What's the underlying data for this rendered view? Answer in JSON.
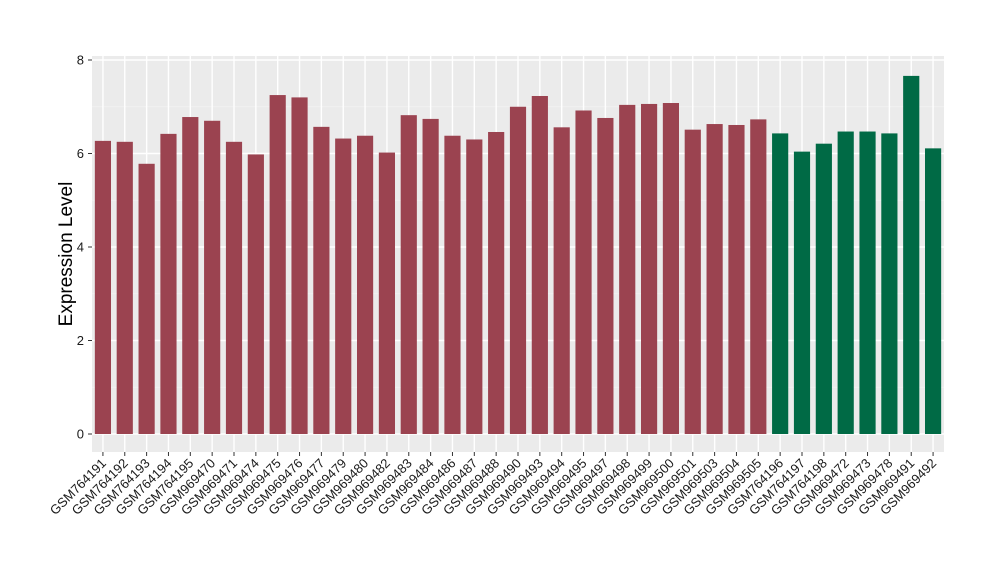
{
  "chart_data": {
    "type": "bar",
    "title": "",
    "xlabel": "",
    "ylabel": "Expression Level",
    "ylim": [
      0,
      8.0
    ],
    "yticks": [
      0,
      2,
      4,
      6,
      8
    ],
    "grid": true,
    "background": "#ebebeb",
    "categories": [
      "GSM764191",
      "GSM764192",
      "GSM764193",
      "GSM764194",
      "GSM764195",
      "GSM969470",
      "GSM969471",
      "GSM969474",
      "GSM969475",
      "GSM969476",
      "GSM969477",
      "GSM969479",
      "GSM969480",
      "GSM969482",
      "GSM969483",
      "GSM969484",
      "GSM969486",
      "GSM969487",
      "GSM969488",
      "GSM969490",
      "GSM969493",
      "GSM969494",
      "GSM969495",
      "GSM969497",
      "GSM969498",
      "GSM969499",
      "GSM969500",
      "GSM969501",
      "GSM969503",
      "GSM969504",
      "GSM969505",
      "GSM764196",
      "GSM764197",
      "GSM764198",
      "GSM969472",
      "GSM969473",
      "GSM969478",
      "GSM969491",
      "GSM969492"
    ],
    "values": [
      6.27,
      6.25,
      5.78,
      6.42,
      6.78,
      6.7,
      6.25,
      5.98,
      7.25,
      7.2,
      6.57,
      6.32,
      6.38,
      6.02,
      6.82,
      6.74,
      6.38,
      6.3,
      6.46,
      7.0,
      7.23,
      6.56,
      6.92,
      6.76,
      7.04,
      7.06,
      7.08,
      6.51,
      6.63,
      6.61,
      6.73,
      6.43,
      6.04,
      6.21,
      6.47,
      6.47,
      6.43,
      7.66,
      6.11
    ],
    "group_colors": {
      "group1": "#9b4350",
      "group2": "#006a45"
    },
    "groups": [
      "group1",
      "group1",
      "group1",
      "group1",
      "group1",
      "group1",
      "group1",
      "group1",
      "group1",
      "group1",
      "group1",
      "group1",
      "group1",
      "group1",
      "group1",
      "group1",
      "group1",
      "group1",
      "group1",
      "group1",
      "group1",
      "group1",
      "group1",
      "group1",
      "group1",
      "group1",
      "group1",
      "group1",
      "group1",
      "group1",
      "group1",
      "group2",
      "group2",
      "group2",
      "group2",
      "group2",
      "group2",
      "group2",
      "group2"
    ]
  }
}
